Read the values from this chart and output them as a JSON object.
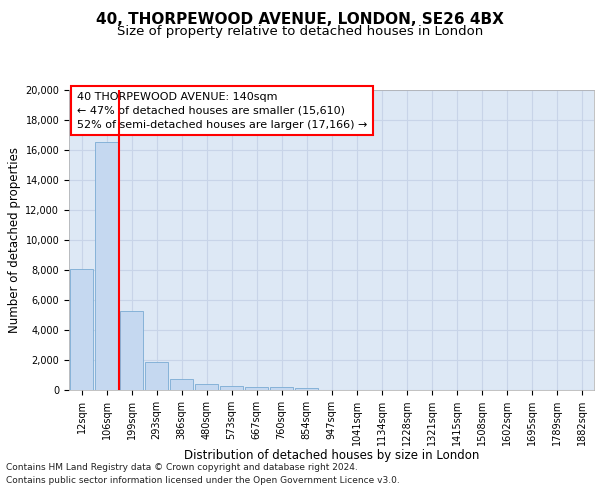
{
  "title_line1": "40, THORPEWOOD AVENUE, LONDON, SE26 4BX",
  "title_line2": "Size of property relative to detached houses in London",
  "xlabel": "Distribution of detached houses by size in London",
  "ylabel": "Number of detached properties",
  "bar_labels": [
    "12sqm",
    "106sqm",
    "199sqm",
    "293sqm",
    "386sqm",
    "480sqm",
    "573sqm",
    "667sqm",
    "760sqm",
    "854sqm",
    "947sqm",
    "1041sqm",
    "1134sqm",
    "1228sqm",
    "1321sqm",
    "1415sqm",
    "1508sqm",
    "1602sqm",
    "1695sqm",
    "1789sqm",
    "1882sqm"
  ],
  "bar_values": [
    8100,
    16500,
    5300,
    1850,
    750,
    370,
    280,
    200,
    180,
    150,
    0,
    0,
    0,
    0,
    0,
    0,
    0,
    0,
    0,
    0,
    0
  ],
  "bar_color": "#c5d8f0",
  "bar_edge_color": "#7aabd4",
  "grid_color": "#c8d4e8",
  "background_color": "#dde8f5",
  "annotation_box_text": "40 THORPEWOOD AVENUE: 140sqm\n← 47% of detached houses are smaller (15,610)\n52% of semi-detached houses are larger (17,166) →",
  "footer_line1": "Contains HM Land Registry data © Crown copyright and database right 2024.",
  "footer_line2": "Contains public sector information licensed under the Open Government Licence v3.0.",
  "ylim": [
    0,
    20000
  ],
  "yticks": [
    0,
    2000,
    4000,
    6000,
    8000,
    10000,
    12000,
    14000,
    16000,
    18000,
    20000
  ],
  "redline_x": 1.5,
  "title_fontsize": 11,
  "subtitle_fontsize": 9.5,
  "axis_label_fontsize": 8.5,
  "tick_fontsize": 7,
  "annotation_fontsize": 8,
  "footer_fontsize": 6.5
}
